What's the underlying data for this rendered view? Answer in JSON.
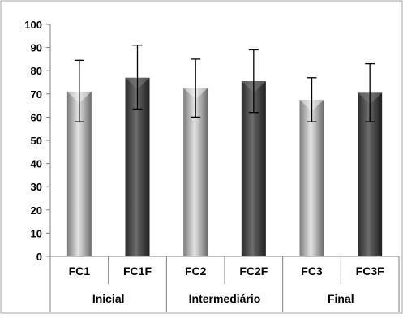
{
  "chart_data": {
    "type": "bar",
    "categories": [
      "FC1",
      "FC1F",
      "FC2",
      "FC2F",
      "FC3",
      "FC3F"
    ],
    "groups": [
      {
        "label": "Inicial",
        "categories": [
          "FC1",
          "FC1F"
        ]
      },
      {
        "label": "Intermediário",
        "categories": [
          "FC2",
          "FC2F"
        ]
      },
      {
        "label": "Final",
        "categories": [
          "FC3",
          "FC3F"
        ]
      }
    ],
    "values": [
      71,
      77,
      72.5,
      75.5,
      67.5,
      70.5
    ],
    "error_low": [
      58,
      63.5,
      60,
      62,
      58,
      58
    ],
    "error_high": [
      84.5,
      91,
      85,
      89,
      77,
      83
    ],
    "ylim": [
      0,
      100
    ],
    "yticks": [
      0,
      10,
      20,
      30,
      40,
      50,
      60,
      70,
      80,
      90,
      100
    ],
    "grid": false,
    "legend": "none",
    "colors": {
      "light_bar": "#a8a8a8",
      "dark_bar": "#4a4a4a",
      "error_bar": "#000000",
      "axis": "#7f7f7f"
    }
  }
}
